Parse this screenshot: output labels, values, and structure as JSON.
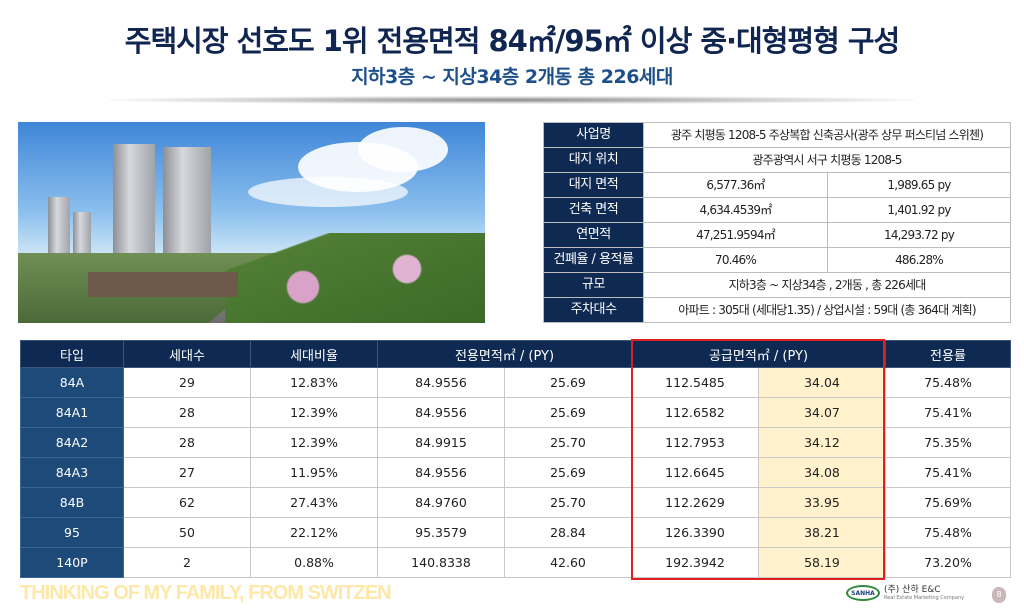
{
  "header": {
    "title": "주택시장 선호도 1위 전용면적 84㎡/95㎡ 이상 중·대형평형 구성",
    "subtitle": "지하3층 ~ 지상34층 2개동 총 226세대"
  },
  "info_table": [
    {
      "label": "사업명",
      "values": [
        "광주 치평동 1208-5 주상복합 신축공사(광주 상무 퍼스티넘 스위첸)"
      ]
    },
    {
      "label": "대지 위치",
      "values": [
        "광주광역시 서구 치평동 1208-5"
      ]
    },
    {
      "label": "대지 면적",
      "values": [
        "6,577.36㎡",
        "1,989.65 py"
      ]
    },
    {
      "label": "건축 면적",
      "values": [
        "4,634.4539㎡",
        "1,401.92 py"
      ]
    },
    {
      "label": "연면적",
      "values": [
        "47,251.9594㎡",
        "14,293.72 py"
      ]
    },
    {
      "label": "건폐율 / 용적률",
      "values": [
        "70.46%",
        "486.28%"
      ]
    },
    {
      "label": "규모",
      "values": [
        "지하3층 ~ 지상34층 , 2개동 , 총 226세대"
      ]
    },
    {
      "label": "주차대수",
      "values": [
        "아파트 : 305대 (세대당1.35) / 상업시설 : 59대 (총 364대 계획)"
      ]
    }
  ],
  "unit_table": {
    "headers": [
      "타입",
      "세대수",
      "세대비율",
      "전용면적㎡ / (PY)",
      "공급면적㎡ / (PY)",
      "전용률"
    ],
    "rows": [
      [
        "84A",
        "29",
        "12.83%",
        "84.9556",
        "25.69",
        "112.5485",
        "34.04",
        "75.48%"
      ],
      [
        "84A1",
        "28",
        "12.39%",
        "84.9556",
        "25.69",
        "112.6582",
        "34.07",
        "75.41%"
      ],
      [
        "84A2",
        "28",
        "12.39%",
        "84.9915",
        "25.70",
        "112.7953",
        "34.12",
        "75.35%"
      ],
      [
        "84A3",
        "27",
        "11.95%",
        "84.9556",
        "25.69",
        "112.6645",
        "34.08",
        "75.41%"
      ],
      [
        "84B",
        "62",
        "27.43%",
        "84.9760",
        "25.70",
        "112.2629",
        "33.95",
        "75.69%"
      ],
      [
        "95",
        "50",
        "22.12%",
        "95.3579",
        "28.84",
        "126.3390",
        "38.21",
        "75.48%"
      ],
      [
        "140P",
        "2",
        "0.88%",
        "140.8338",
        "42.60",
        "192.3942",
        "58.19",
        "73.20%"
      ]
    ]
  },
  "footer": {
    "slogan": "THINKING OF MY FAMILY, FROM SWITZEN",
    "logo_mark": "SANHA",
    "company": "(주) 산하 E&C",
    "company_sub": "Real Estate Marketing Company",
    "page": "8"
  },
  "colors": {
    "navy": "#0f2a52",
    "type_cell": "#1d4a78",
    "highlight": "#fff2cc",
    "red_box": "#e02020",
    "slogan": "#fde8a8"
  }
}
